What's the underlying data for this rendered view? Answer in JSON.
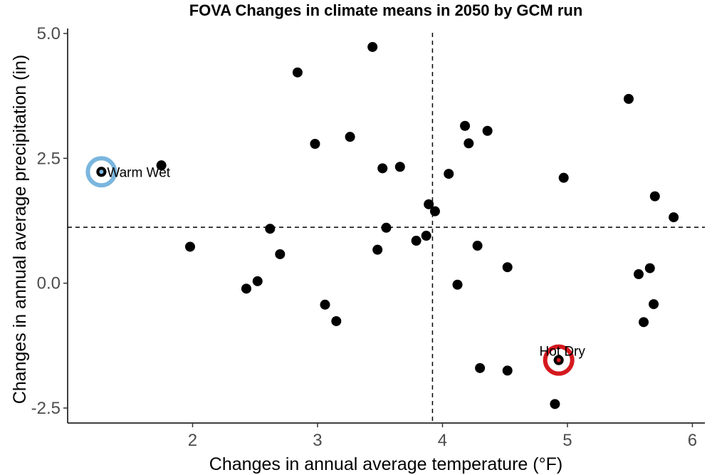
{
  "chart_data": {
    "type": "scatter",
    "title": "FOVA Changes in climate means in 2050 by GCM run",
    "xlabel": "Changes in annual average temperature (°F)",
    "ylabel": "Changes in annual average precipitation (in)",
    "xlim": [
      1.0,
      6.1
    ],
    "ylim": [
      -2.8,
      5.1
    ],
    "xticks": [
      2,
      3,
      4,
      5,
      6
    ],
    "xtick_labels": [
      "2",
      "3",
      "4",
      "5",
      "6"
    ],
    "yticks": [
      -2.5,
      0.0,
      2.5,
      5.0
    ],
    "ytick_labels": [
      "-2.5",
      "0.0",
      "2.5",
      "5.0"
    ],
    "grid": false,
    "reference_lines": {
      "vertical_x": 3.92,
      "horizontal_y": 1.12
    },
    "points": [
      {
        "x": 1.27,
        "y": 2.23
      },
      {
        "x": 1.75,
        "y": 2.36
      },
      {
        "x": 1.98,
        "y": 0.73
      },
      {
        "x": 2.43,
        "y": -0.11
      },
      {
        "x": 2.52,
        "y": 0.04
      },
      {
        "x": 2.62,
        "y": 1.09
      },
      {
        "x": 2.7,
        "y": 0.58
      },
      {
        "x": 2.84,
        "y": 4.22
      },
      {
        "x": 2.98,
        "y": 2.79
      },
      {
        "x": 3.06,
        "y": -0.43
      },
      {
        "x": 3.15,
        "y": -0.76
      },
      {
        "x": 3.26,
        "y": 2.93
      },
      {
        "x": 3.44,
        "y": 4.73
      },
      {
        "x": 3.48,
        "y": 0.67
      },
      {
        "x": 3.52,
        "y": 2.3
      },
      {
        "x": 3.55,
        "y": 1.11
      },
      {
        "x": 3.66,
        "y": 2.33
      },
      {
        "x": 3.79,
        "y": 0.85
      },
      {
        "x": 3.87,
        "y": 0.95
      },
      {
        "x": 3.89,
        "y": 1.58
      },
      {
        "x": 3.94,
        "y": 1.44
      },
      {
        "x": 4.05,
        "y": 2.19
      },
      {
        "x": 4.12,
        "y": -0.03
      },
      {
        "x": 4.18,
        "y": 3.15
      },
      {
        "x": 4.21,
        "y": 2.8
      },
      {
        "x": 4.28,
        "y": 0.75
      },
      {
        "x": 4.3,
        "y": -1.7
      },
      {
        "x": 4.36,
        "y": 3.05
      },
      {
        "x": 4.52,
        "y": 0.32
      },
      {
        "x": 4.52,
        "y": -1.75
      },
      {
        "x": 4.9,
        "y": -2.42
      },
      {
        "x": 4.93,
        "y": -1.54
      },
      {
        "x": 4.97,
        "y": 2.11
      },
      {
        "x": 5.49,
        "y": 3.69
      },
      {
        "x": 5.57,
        "y": 0.18
      },
      {
        "x": 5.61,
        "y": -0.78
      },
      {
        "x": 5.66,
        "y": 0.3
      },
      {
        "x": 5.69,
        "y": -0.42
      },
      {
        "x": 5.7,
        "y": 1.74
      },
      {
        "x": 5.85,
        "y": 1.32
      }
    ],
    "highlights": [
      {
        "label": "Warm Wet",
        "x": 1.27,
        "y": 2.23,
        "color": "#7ab6de",
        "label_position": "right"
      },
      {
        "label": "Hot Dry",
        "x": 4.93,
        "y": -1.54,
        "color": "#d4191e",
        "label_position": "top"
      }
    ],
    "point_color": "#000000"
  }
}
